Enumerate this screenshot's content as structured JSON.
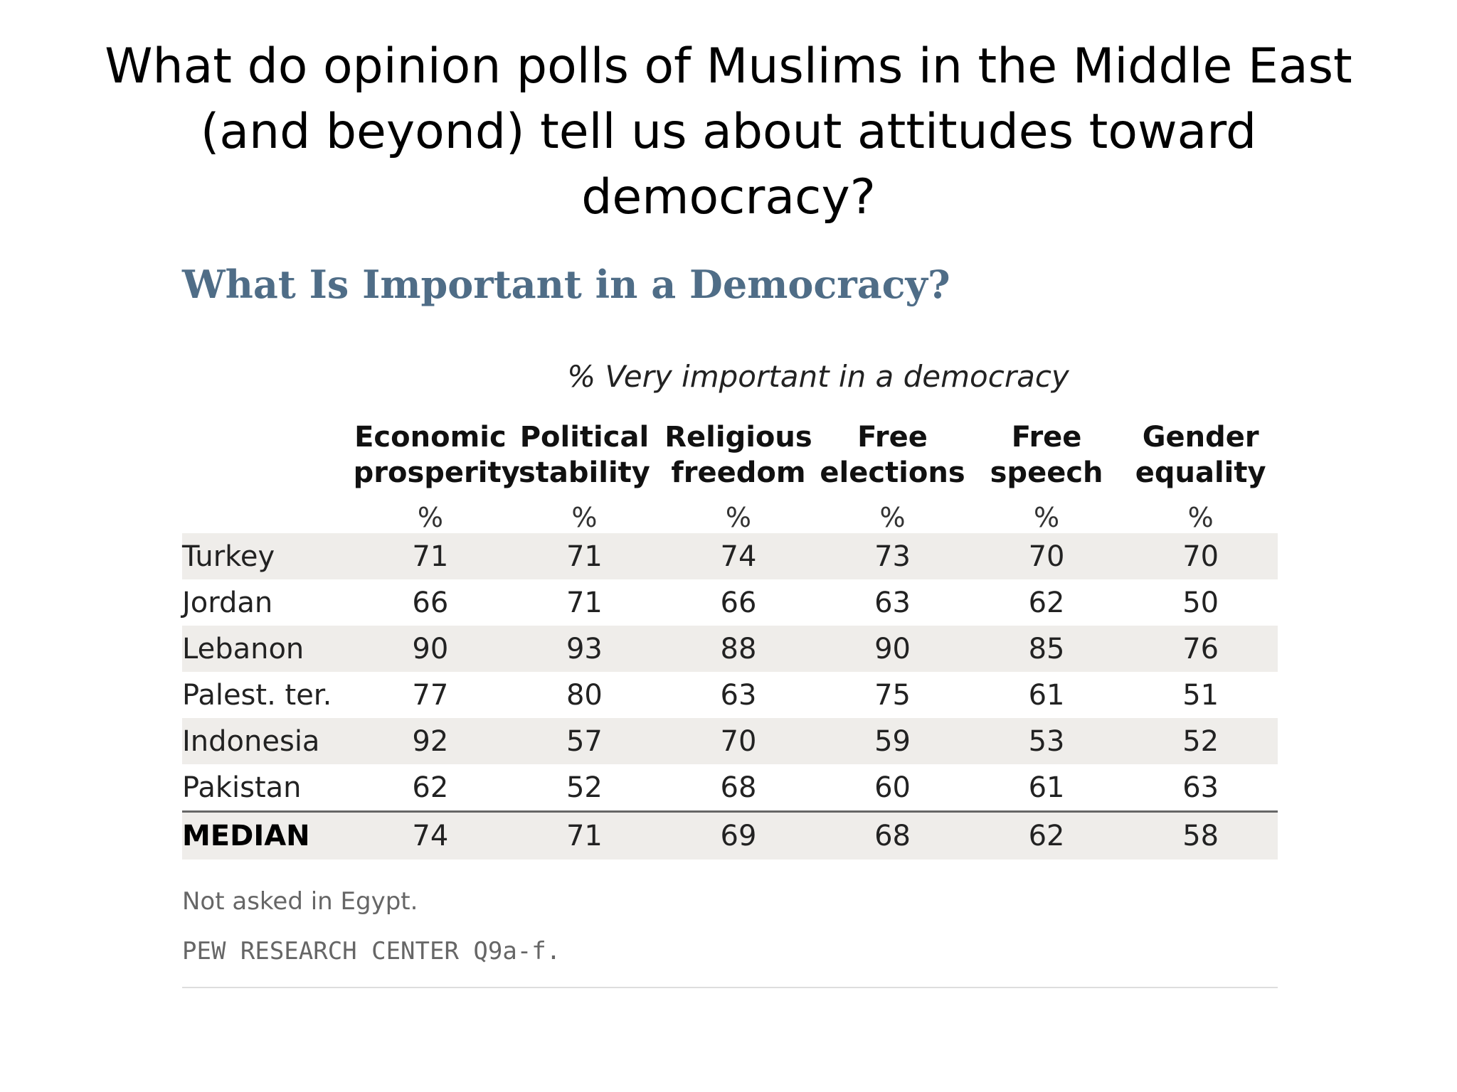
{
  "slide": {
    "title_lines": [
      "What do opinion polls of Muslims in the Middle East",
      "(and beyond) tell us about attitudes toward",
      "democracy?"
    ]
  },
  "chart_data": {
    "type": "table",
    "title": "What Is Important in a Democracy?",
    "subtitle": "% Very important in a democracy",
    "columns": [
      {
        "line1": "Economic",
        "line2": "prosperity"
      },
      {
        "line1": "Political",
        "line2": "stability"
      },
      {
        "line1": "Religious",
        "line2": "freedom"
      },
      {
        "line1": "Free",
        "line2": "elections"
      },
      {
        "line1": "Free",
        "line2": "speech"
      },
      {
        "line1": "Gender",
        "line2": "equality"
      }
    ],
    "unit_row": [
      "%",
      "%",
      "%",
      "%",
      "%",
      "%"
    ],
    "rows": [
      {
        "country": "Turkey",
        "values": [
          71,
          71,
          74,
          73,
          70,
          70
        ]
      },
      {
        "country": "Jordan",
        "values": [
          66,
          71,
          66,
          63,
          62,
          50
        ]
      },
      {
        "country": "Lebanon",
        "values": [
          90,
          93,
          88,
          90,
          85,
          76
        ]
      },
      {
        "country": "Palest. ter.",
        "values": [
          77,
          80,
          63,
          75,
          61,
          51
        ]
      },
      {
        "country": "Indonesia",
        "values": [
          92,
          57,
          70,
          59,
          53,
          52
        ]
      },
      {
        "country": "Pakistan",
        "values": [
          62,
          52,
          68,
          60,
          61,
          63
        ]
      }
    ],
    "median": {
      "label": "MEDIAN",
      "values": [
        74,
        71,
        69,
        68,
        62,
        58
      ]
    },
    "note": "Not asked in Egypt.",
    "source": "PEW RESEARCH CENTER Q9a-f."
  }
}
